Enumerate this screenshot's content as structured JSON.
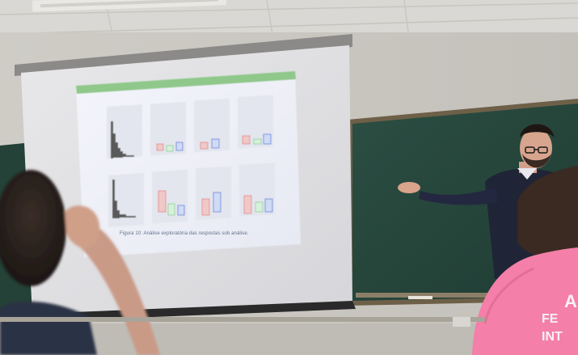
{
  "slide": {
    "caption": "Figura 10: Análise exploratória das respostas sob análise.",
    "panel_titles": [
      "",
      "",
      "",
      ""
    ],
    "colors": {
      "header_bar": "#8fc88a",
      "panel_bg": "#e6e8f0",
      "accent_blue": "#4a6fd8",
      "accent_red": "#e07a7a",
      "accent_green": "#7cd08a"
    }
  },
  "shirt": {
    "lines": [
      "A",
      "FE",
      "INT"
    ],
    "color": "#f47fa8"
  }
}
